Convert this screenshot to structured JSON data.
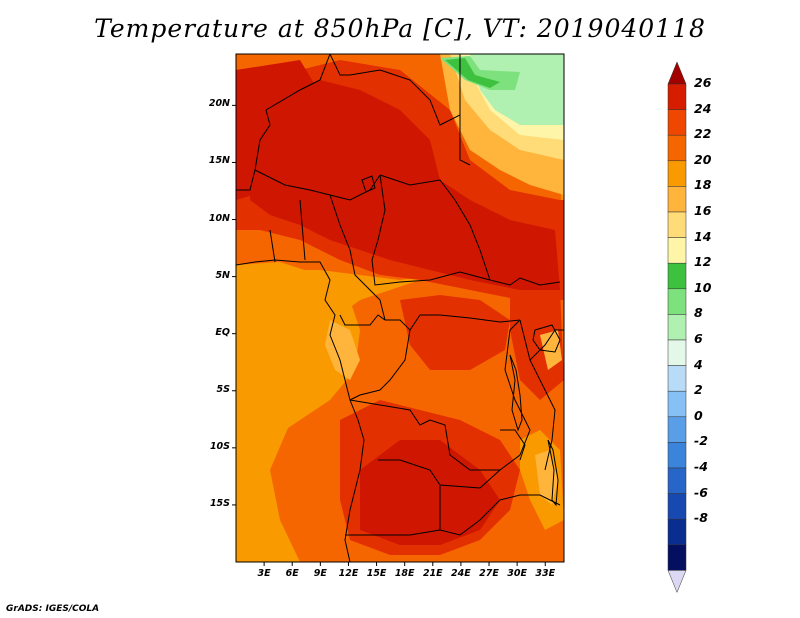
{
  "title": "Temperature at 850hPa [C], VT: 2019040118",
  "credit": "GrADS: IGES/COLA",
  "map": {
    "lat_ticks": [
      "20N",
      "15N",
      "10N",
      "5N",
      "EQ",
      "5S",
      "10S",
      "15S"
    ],
    "lon_ticks": [
      "3E",
      "6E",
      "9E",
      "12E",
      "15E",
      "18E",
      "21E",
      "24E",
      "27E",
      "30E",
      "33E"
    ],
    "extent": {
      "lon": [
        0,
        35
      ],
      "lat": [
        -20,
        24.5
      ]
    },
    "grid": false,
    "features": [
      "coastlines",
      "country-borders",
      "lakes"
    ]
  },
  "colorbar": {
    "labels": [
      "26",
      "24",
      "22",
      "20",
      "18",
      "16",
      "14",
      "12",
      "10",
      "8",
      "6",
      "4",
      "2",
      "0",
      "-2",
      "-4",
      "-6",
      "-8"
    ],
    "colors": [
      "#a30000",
      "#d71d00",
      "#f04700",
      "#f66600",
      "#f89a00",
      "#ffb43c",
      "#ffdc78",
      "#fff5a8",
      "#3ec13e",
      "#7de17d",
      "#b0f0b0",
      "#e4f8ea",
      "#b8dcf8",
      "#86c0f4",
      "#5a9ee8",
      "#3a84dc",
      "#2766c8",
      "#1849b0",
      "#0a2e90",
      "#040f60",
      "#dcd8f4"
    ]
  }
}
